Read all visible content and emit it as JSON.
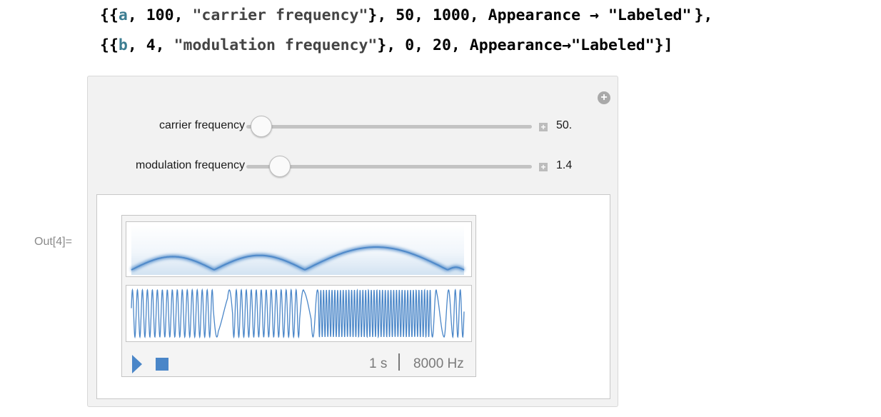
{
  "code": {
    "line1": {
      "part1": "{{",
      "var": "a",
      "part2": ", 100, ",
      "str": "\"carrier frequency\"",
      "part3": "}, 50, 1000, Appearance → \"Labeled\"",
      "part4": "},"
    },
    "line2": {
      "part1": "{{",
      "var": "b",
      "part2": ", 4, ",
      "str": "\"modulation frequency\"",
      "part3": "}, 0, 20, Appearance→\"Labeled\"}]"
    }
  },
  "out_label": "Out[4]=",
  "manipulate": {
    "plus_icon": "+",
    "controls": [
      {
        "label": "carrier frequency",
        "value": "50.",
        "fraction": 0.0
      },
      {
        "label": "modulation frequency",
        "value": "1.4",
        "fraction": 0.07
      }
    ],
    "mini_plus_icon": "+"
  },
  "sound": {
    "duration": "1 s",
    "sample_rate": "8000 Hz",
    "wave_color": "#4a86c8"
  }
}
